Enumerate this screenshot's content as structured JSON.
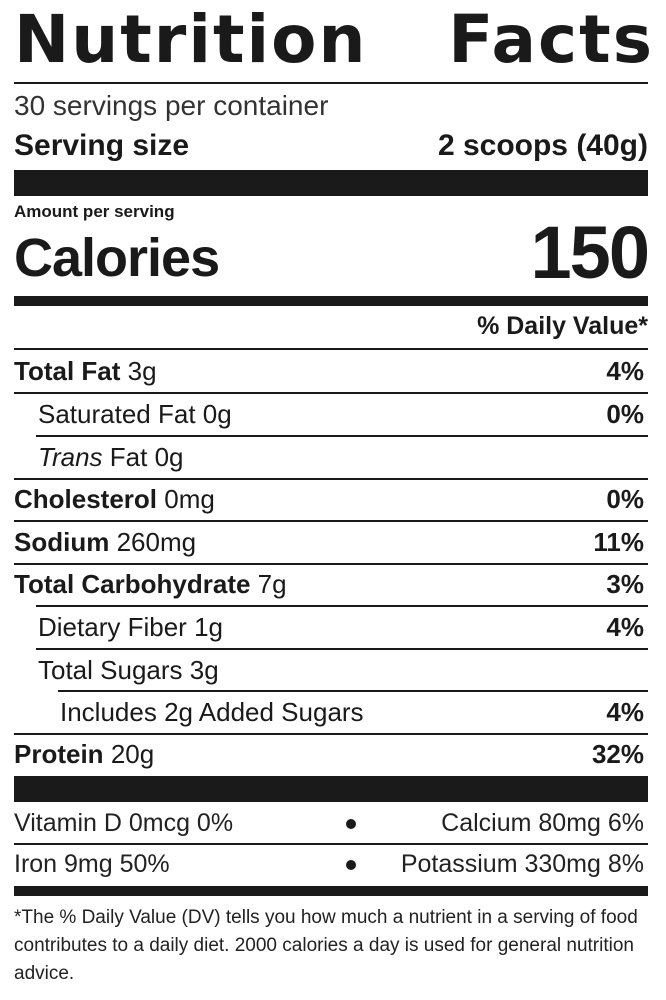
{
  "header": {
    "title_word1": "Nutrition",
    "title_word2": "Facts",
    "servings_per_container": "30 servings per container",
    "serving_size_label": "Serving size",
    "serving_size_value": "2 scoops (40g)"
  },
  "calories": {
    "amount_label": "Amount per serving",
    "label": "Calories",
    "value": "150"
  },
  "daily_value_header": "% Daily Value*",
  "nutrients": [
    {
      "name": "Total Fat",
      "amount": "3g",
      "dv": "4%"
    },
    {
      "name": "Saturated Fat",
      "amount": "0g",
      "dv": "0%"
    },
    {
      "name": "Trans",
      "name_suffix": "Fat",
      "amount": "0g",
      "dv": ""
    },
    {
      "name": "Cholesterol",
      "amount": "0mg",
      "dv": "0%"
    },
    {
      "name": "Sodium",
      "amount": "260mg",
      "dv": "11%"
    },
    {
      "name": "Total Carbohydrate",
      "amount": "7g",
      "dv": "3%"
    },
    {
      "name": "Dietary Fiber",
      "amount": "1g",
      "dv": "4%"
    },
    {
      "name": "Total Sugars",
      "amount": "3g",
      "dv": ""
    },
    {
      "name": "Includes 2g Added Sugars",
      "amount": "",
      "dv": "4%"
    },
    {
      "name": "Protein",
      "amount": "20g",
      "dv": "32%"
    }
  ],
  "vitamins": [
    {
      "left": "Vitamin D 0mcg 0%",
      "right": "Calcium 80mg 6%"
    },
    {
      "left": "Iron 9mg 50%",
      "right": "Potassium 330mg 8%"
    }
  ],
  "footnote": "*The % Daily Value (DV) tells you how much a nutrient in a serving of food contributes to a daily diet. 2000 calories a day is used for general nutrition advice."
}
